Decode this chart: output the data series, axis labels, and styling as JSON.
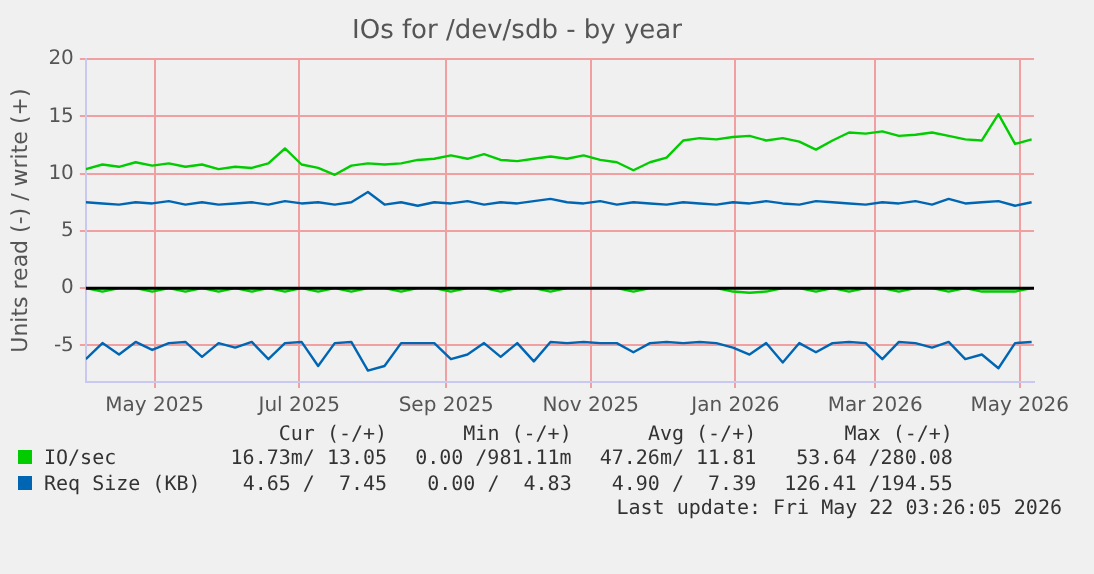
{
  "chart_data": {
    "type": "line",
    "title": "IOs for /dev/sdb - by year",
    "ylabel": "Units read (-) / write (+)",
    "x": [
      "2025-04-17",
      "2025-04-24",
      "2025-05-01",
      "2025-05-08",
      "2025-05-15",
      "2025-05-22",
      "2025-05-29",
      "2025-06-05",
      "2025-06-12",
      "2025-06-19",
      "2025-06-26",
      "2025-07-03",
      "2025-07-10",
      "2025-07-17",
      "2025-07-24",
      "2025-07-31",
      "2025-08-07",
      "2025-08-14",
      "2025-08-21",
      "2025-08-28",
      "2025-09-04",
      "2025-09-11",
      "2025-09-18",
      "2025-09-25",
      "2025-10-02",
      "2025-10-09",
      "2025-10-16",
      "2025-10-23",
      "2025-10-30",
      "2025-11-06",
      "2025-11-13",
      "2025-11-20",
      "2025-11-27",
      "2025-12-04",
      "2025-12-11",
      "2025-12-18",
      "2025-12-25",
      "2026-01-01",
      "2026-01-08",
      "2026-01-15",
      "2026-01-22",
      "2026-01-29",
      "2026-02-05",
      "2026-02-12",
      "2026-02-19",
      "2026-02-26",
      "2026-03-05",
      "2026-03-12",
      "2026-03-19",
      "2026-03-26",
      "2026-04-02",
      "2026-04-09",
      "2026-04-16",
      "2026-04-23",
      "2026-04-30",
      "2026-05-07",
      "2026-05-14",
      "2026-05-21"
    ],
    "series": [
      {
        "name": "IO/sec",
        "color": "#00cc00",
        "values": [
          10.4,
          10.8,
          10.6,
          11.0,
          10.7,
          10.9,
          10.6,
          10.8,
          10.4,
          10.6,
          10.5,
          10.9,
          12.2,
          10.8,
          10.5,
          9.9,
          10.7,
          10.9,
          10.8,
          10.9,
          11.2,
          11.3,
          11.6,
          11.3,
          11.7,
          11.2,
          11.1,
          11.3,
          11.5,
          11.3,
          11.6,
          11.2,
          11.0,
          10.3,
          11.0,
          11.4,
          12.9,
          13.1,
          13.0,
          13.2,
          13.3,
          12.9,
          13.1,
          12.8,
          12.1,
          12.9,
          13.6,
          13.5,
          13.7,
          13.3,
          13.4,
          13.6,
          13.3,
          13.0,
          12.9,
          15.2,
          12.6,
          13.0
        ]
      },
      {
        "color": "#00cc00",
        "values": [
          0,
          -0.3,
          0,
          0,
          -0.3,
          0,
          -0.3,
          0,
          -0.3,
          0,
          -0.3,
          0,
          -0.3,
          0,
          -0.3,
          0,
          -0.3,
          0,
          0,
          -0.3,
          0,
          0,
          -0.3,
          0,
          0,
          -0.3,
          0,
          0,
          -0.3,
          0,
          0,
          0,
          0,
          -0.3,
          0,
          0,
          0,
          0,
          0,
          -0.3,
          -0.4,
          -0.3,
          0,
          0,
          -0.3,
          0,
          -0.3,
          0,
          0,
          -0.3,
          0,
          0,
          -0.3,
          0,
          -0.3,
          -0.3,
          -0.3,
          0
        ]
      },
      {
        "name": "Req Size (KB)",
        "color": "#0066b3",
        "values": [
          7.5,
          7.4,
          7.3,
          7.5,
          7.4,
          7.6,
          7.3,
          7.5,
          7.3,
          7.4,
          7.5,
          7.3,
          7.6,
          7.4,
          7.5,
          7.3,
          7.5,
          8.4,
          7.3,
          7.5,
          7.2,
          7.5,
          7.4,
          7.6,
          7.3,
          7.5,
          7.4,
          7.6,
          7.8,
          7.5,
          7.4,
          7.6,
          7.3,
          7.5,
          7.4,
          7.3,
          7.5,
          7.4,
          7.3,
          7.5,
          7.4,
          7.6,
          7.4,
          7.3,
          7.6,
          7.5,
          7.4,
          7.3,
          7.5,
          7.4,
          7.6,
          7.3,
          7.8,
          7.4,
          7.5,
          7.6,
          7.2,
          7.5
        ]
      },
      {
        "color": "#0066b3",
        "values": [
          -6.2,
          -4.8,
          -5.8,
          -4.7,
          -5.4,
          -4.8,
          -4.7,
          -6.0,
          -4.8,
          -5.2,
          -4.7,
          -6.2,
          -4.8,
          -4.7,
          -6.8,
          -4.8,
          -4.7,
          -7.2,
          -6.8,
          -4.8,
          -4.8,
          -4.8,
          -6.2,
          -5.8,
          -4.8,
          -6.0,
          -4.8,
          -6.4,
          -4.7,
          -4.8,
          -4.7,
          -4.8,
          -4.8,
          -5.6,
          -4.8,
          -4.7,
          -4.8,
          -4.7,
          -4.8,
          -5.2,
          -5.8,
          -4.8,
          -6.5,
          -4.8,
          -5.6,
          -4.8,
          -4.7,
          -4.8,
          -6.2,
          -4.7,
          -4.8,
          -5.2,
          -4.7,
          -6.2,
          -5.8,
          -7.0,
          -4.8,
          -4.7
        ]
      }
    ],
    "xlim": [
      "2025-04-17",
      "2026-05-22"
    ],
    "xticks": [
      {
        "value": "2025-05-16",
        "label": "May 2025"
      },
      {
        "value": "2025-07-16",
        "label": "Jul 2025"
      },
      {
        "value": "2025-09-16",
        "label": "Sep 2025"
      },
      {
        "value": "2025-11-16",
        "label": "Nov 2025"
      },
      {
        "value": "2026-01-16",
        "label": "Jan 2026"
      },
      {
        "value": "2026-03-16",
        "label": "Mar 2026"
      },
      {
        "value": "2026-05-16",
        "label": "May 2026"
      }
    ],
    "ylim": [
      -8.2,
      20
    ],
    "yticks": [
      -5,
      0,
      5,
      10,
      15,
      20
    ],
    "ref_lines": [
      {
        "axis": "y",
        "value": 0,
        "color": "#000000"
      }
    ],
    "grid": true,
    "legend": "bottom",
    "marker": "none",
    "line_style": "solid",
    "annotations": [
      "Cur (-/+)",
      "Min (-/+)",
      "Avg (-/+)",
      "Max (-/+)",
      "16.73m/ 13.05",
      "0.00 /981.11m",
      "47.26m/ 11.81",
      "53.64 /280.08",
      "4.65 /  7.45",
      "0.00 /  4.83",
      "4.90 /  7.39",
      "126.41 /194.55",
      "Last update: Fri May 22 03:26:05 2026"
    ]
  }
}
